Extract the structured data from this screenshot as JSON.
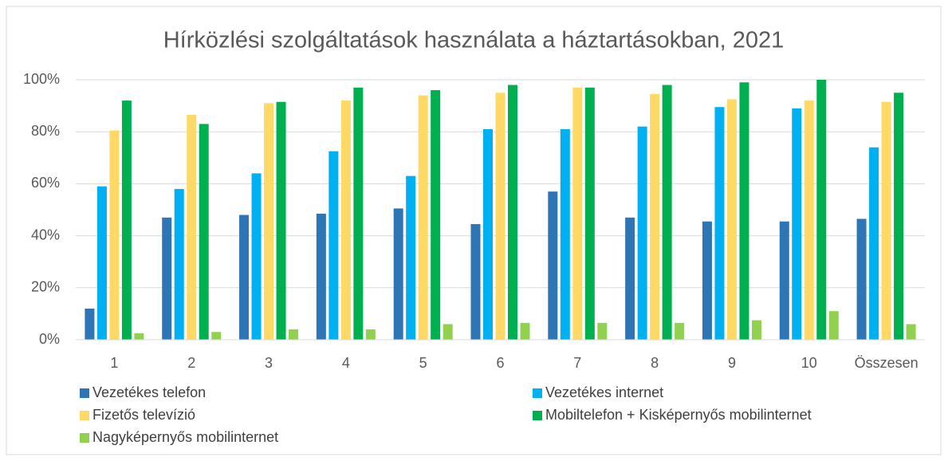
{
  "chart_data": {
    "type": "bar",
    "title": "Hírközlési szolgáltatások használata a háztartásokban, 2021",
    "categories": [
      "1",
      "2",
      "3",
      "4",
      "5",
      "6",
      "7",
      "8",
      "9",
      "10",
      "Összesen"
    ],
    "series": [
      {
        "name": "Vezetékes telefon",
        "color": "#2e75b6",
        "values": [
          12,
          47,
          48,
          48.5,
          50.5,
          44.5,
          57,
          47,
          45.5,
          45.5,
          46.5
        ]
      },
      {
        "name": "Vezetékes internet",
        "color": "#00b0f0",
        "values": [
          59,
          58,
          64,
          72.5,
          63,
          81,
          81,
          82,
          89.5,
          89,
          74
        ]
      },
      {
        "name": "Fizetős televízió",
        "color": "#ffd966",
        "values": [
          80.5,
          86.5,
          91,
          92,
          94,
          95,
          97,
          94.5,
          92.5,
          92,
          91.5
        ]
      },
      {
        "name": "Mobiltelefon + Kisképernyős mobilinternet",
        "color": "#00b050",
        "values": [
          92,
          83,
          91.5,
          97,
          96,
          98,
          97,
          98,
          99,
          100,
          95
        ]
      },
      {
        "name": "Nagyképernyős mobilinternet",
        "color": "#92d050",
        "values": [
          2.5,
          3,
          4,
          4,
          6,
          6.5,
          6.5,
          6.5,
          7.5,
          11,
          6
        ]
      }
    ],
    "ylim": [
      0,
      100
    ],
    "yticks": [
      {
        "value": 0,
        "label": "0%"
      },
      {
        "value": 20,
        "label": "20%"
      },
      {
        "value": 40,
        "label": "40%"
      },
      {
        "value": 60,
        "label": "60%"
      },
      {
        "value": 80,
        "label": "80%"
      },
      {
        "value": 100,
        "label": "100%"
      }
    ],
    "grid": true,
    "legend": "bottom"
  }
}
